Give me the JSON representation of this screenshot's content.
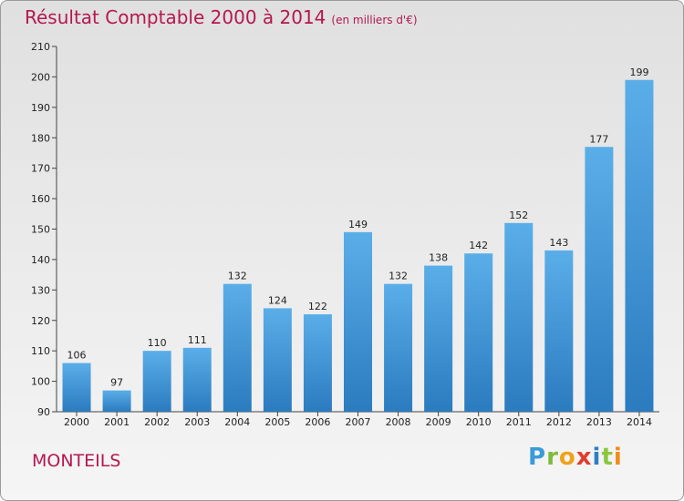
{
  "title": "Résultat Comptable 2000 à 2014",
  "subtitle": "(en milliers d'€)",
  "commune": "MONTEILS",
  "logo": {
    "letters": [
      "P",
      "r",
      "o",
      "x",
      "i",
      "t",
      "i"
    ]
  },
  "colors": {
    "title": "#b5174f",
    "bar_top": "#5aaee8",
    "bar_bottom": "#2b7bbf"
  },
  "chart_data": {
    "type": "bar",
    "title": "Résultat Comptable 2000 à 2014",
    "subtitle": "(en milliers d'€)",
    "categories": [
      "2000",
      "2001",
      "2002",
      "2003",
      "2004",
      "2005",
      "2006",
      "2007",
      "2008",
      "2009",
      "2010",
      "2011",
      "2012",
      "2013",
      "2014"
    ],
    "values": [
      106,
      97,
      110,
      111,
      132,
      124,
      122,
      149,
      132,
      138,
      142,
      152,
      143,
      177,
      199
    ],
    "ylim": [
      90,
      210
    ],
    "yticks": [
      90,
      100,
      110,
      120,
      130,
      140,
      150,
      160,
      170,
      180,
      190,
      200,
      210
    ],
    "grid": false,
    "data_labels": true
  }
}
